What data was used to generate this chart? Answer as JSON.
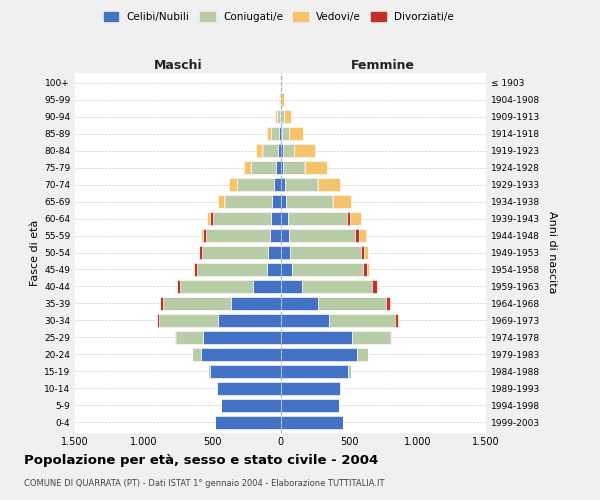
{
  "age_groups": [
    "0-4",
    "5-9",
    "10-14",
    "15-19",
    "20-24",
    "25-29",
    "30-34",
    "35-39",
    "40-44",
    "45-49",
    "50-54",
    "55-59",
    "60-64",
    "65-69",
    "70-74",
    "75-79",
    "80-84",
    "85-89",
    "90-94",
    "95-99",
    "100+"
  ],
  "birth_years": [
    "1999-2003",
    "1994-1998",
    "1989-1993",
    "1984-1988",
    "1979-1983",
    "1974-1978",
    "1969-1973",
    "1964-1968",
    "1959-1963",
    "1954-1958",
    "1949-1953",
    "1944-1948",
    "1939-1943",
    "1934-1938",
    "1929-1933",
    "1924-1928",
    "1919-1923",
    "1914-1918",
    "1909-1913",
    "1904-1908",
    "≤ 1903"
  ],
  "males_celibi": [
    475,
    435,
    465,
    515,
    580,
    565,
    455,
    360,
    200,
    100,
    90,
    80,
    70,
    60,
    50,
    30,
    20,
    10,
    5,
    2,
    2
  ],
  "males_coniugati": [
    2,
    2,
    5,
    12,
    65,
    200,
    430,
    500,
    530,
    510,
    480,
    465,
    425,
    345,
    265,
    185,
    110,
    60,
    20,
    5,
    3
  ],
  "males_vedovi": [
    0,
    0,
    0,
    0,
    0,
    0,
    0,
    1,
    2,
    4,
    6,
    12,
    22,
    42,
    55,
    50,
    45,
    30,
    15,
    5,
    2
  ],
  "males_divorziati": [
    0,
    0,
    0,
    0,
    2,
    5,
    16,
    22,
    26,
    22,
    22,
    22,
    16,
    6,
    4,
    3,
    2,
    0,
    0,
    0,
    0
  ],
  "females_nubili": [
    455,
    425,
    435,
    495,
    555,
    525,
    355,
    275,
    155,
    82,
    72,
    62,
    52,
    42,
    30,
    20,
    15,
    10,
    5,
    2,
    2
  ],
  "females_coniugate": [
    2,
    2,
    6,
    18,
    82,
    275,
    482,
    492,
    512,
    522,
    512,
    482,
    435,
    335,
    235,
    152,
    82,
    50,
    20,
    5,
    3
  ],
  "females_vedove": [
    0,
    0,
    0,
    0,
    0,
    2,
    4,
    6,
    12,
    18,
    32,
    52,
    82,
    132,
    162,
    162,
    155,
    105,
    52,
    15,
    5
  ],
  "females_divorziate": [
    0,
    0,
    0,
    0,
    2,
    6,
    22,
    32,
    36,
    26,
    26,
    26,
    22,
    6,
    6,
    4,
    2,
    2,
    0,
    0,
    0
  ],
  "colors_celibi": "#4472c4",
  "colors_coniugati": "#b8cca8",
  "colors_vedovi": "#f5c46a",
  "colors_divorziati": "#c0312b",
  "title": "Popolazione per età, sesso e stato civile - 2004",
  "subtitle": "COMUNE DI QUARRATA (PT) - Dati ISTAT 1° gennaio 2004 - Elaborazione TUTTITALIA.IT",
  "ylabel_left": "Fasce di età",
  "ylabel_right": "Anni di nascita",
  "xlabel_maschi": "Maschi",
  "xlabel_femmine": "Femmine",
  "xlim": 1500,
  "bg_color": "#f0f0f0",
  "plot_bg": "#ffffff",
  "legend_labels": [
    "Celibi/Nubili",
    "Coniugati/e",
    "Vedovi/e",
    "Divorziati/e"
  ]
}
